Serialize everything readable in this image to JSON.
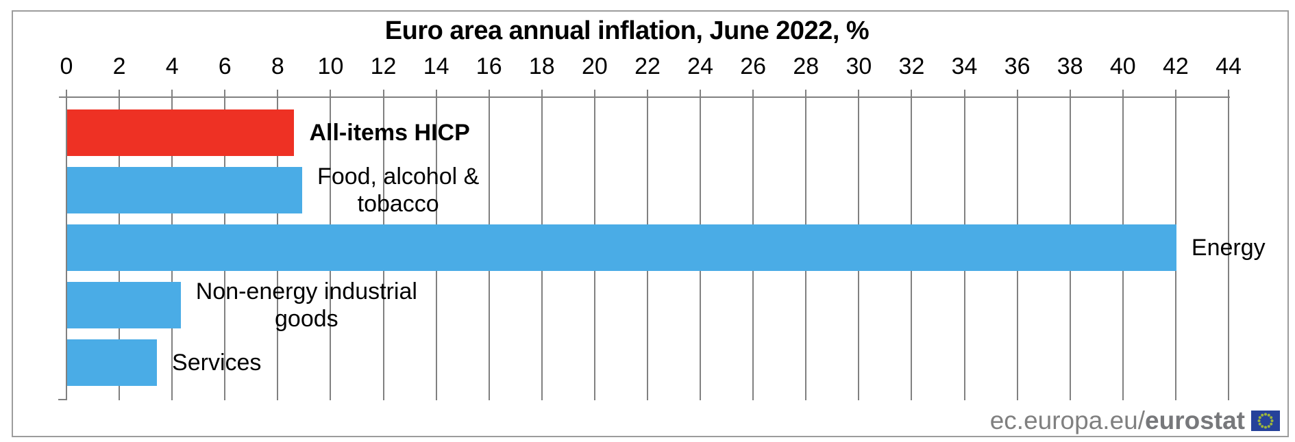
{
  "title": "Euro area annual inflation, June 2022, %",
  "footer": {
    "url_regular": "ec.europa.eu/",
    "url_bold": "eurostat"
  },
  "colors": {
    "highlight_bar_red": "#ee3124",
    "bar_blue": "#4aace6",
    "grid_gray": "#808080",
    "border_gray": "#9c9c9c",
    "title_black": "#000000",
    "footer_gray": "#808080",
    "flag_blue": "#26429a",
    "flag_stars_green": "#9db63c"
  },
  "chart_data": {
    "type": "bar",
    "orientation": "horizontal",
    "title": "Euro area annual inflation, June 2022, %",
    "categories": [
      "All-items HICP",
      "Food, alcohol & tobacco",
      "Energy",
      "Non-energy industrial goods",
      "Services"
    ],
    "values": [
      8.6,
      8.9,
      42.0,
      4.3,
      3.4
    ],
    "unit": "%",
    "bar_colors": [
      "#ee3124",
      "#4aace6",
      "#4aace6",
      "#4aace6",
      "#4aace6"
    ],
    "label_lines": [
      [
        "All-items HICP"
      ],
      [
        "Food, alcohol &",
        "tobacco"
      ],
      [
        "Energy"
      ],
      [
        "Non-energy industrial",
        "goods"
      ],
      [
        "Services"
      ]
    ],
    "label_bold": [
      true,
      false,
      false,
      false,
      false
    ],
    "xlim": [
      0,
      44
    ],
    "x_ticks": [
      0,
      2,
      4,
      6,
      8,
      10,
      12,
      14,
      16,
      18,
      20,
      22,
      24,
      26,
      28,
      30,
      32,
      34,
      36,
      38,
      40,
      42,
      44
    ],
    "axis_side": "top",
    "grid": true,
    "legend": false
  }
}
